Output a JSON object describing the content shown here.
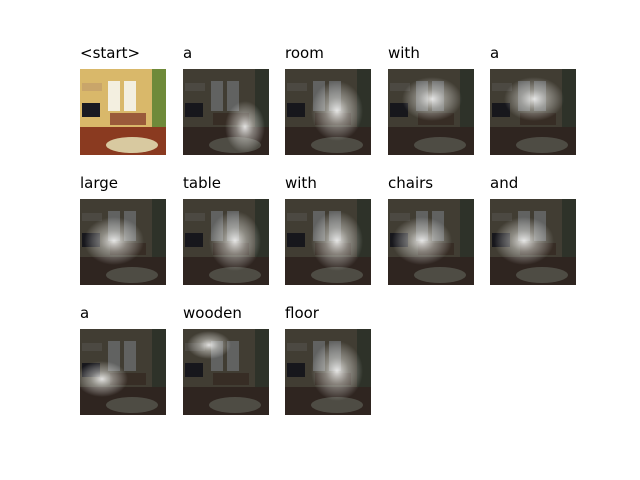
{
  "caption_words": [
    {
      "word": "<start>",
      "attention": "original"
    },
    {
      "word": "a",
      "attention": "lower-right"
    },
    {
      "word": "room",
      "attention": "center"
    },
    {
      "word": "with",
      "attention": "top-center"
    },
    {
      "word": "a",
      "attention": "top-center"
    },
    {
      "word": "large",
      "attention": "left-center"
    },
    {
      "word": "table",
      "attention": "center"
    },
    {
      "word": "with",
      "attention": "center"
    },
    {
      "word": "chairs",
      "attention": "left-center"
    },
    {
      "word": "and",
      "attention": "left-center"
    },
    {
      "word": "a",
      "attention": "left-lower"
    },
    {
      "word": "wooden",
      "attention": "top-left"
    },
    {
      "word": "floor",
      "attention": "center"
    }
  ]
}
